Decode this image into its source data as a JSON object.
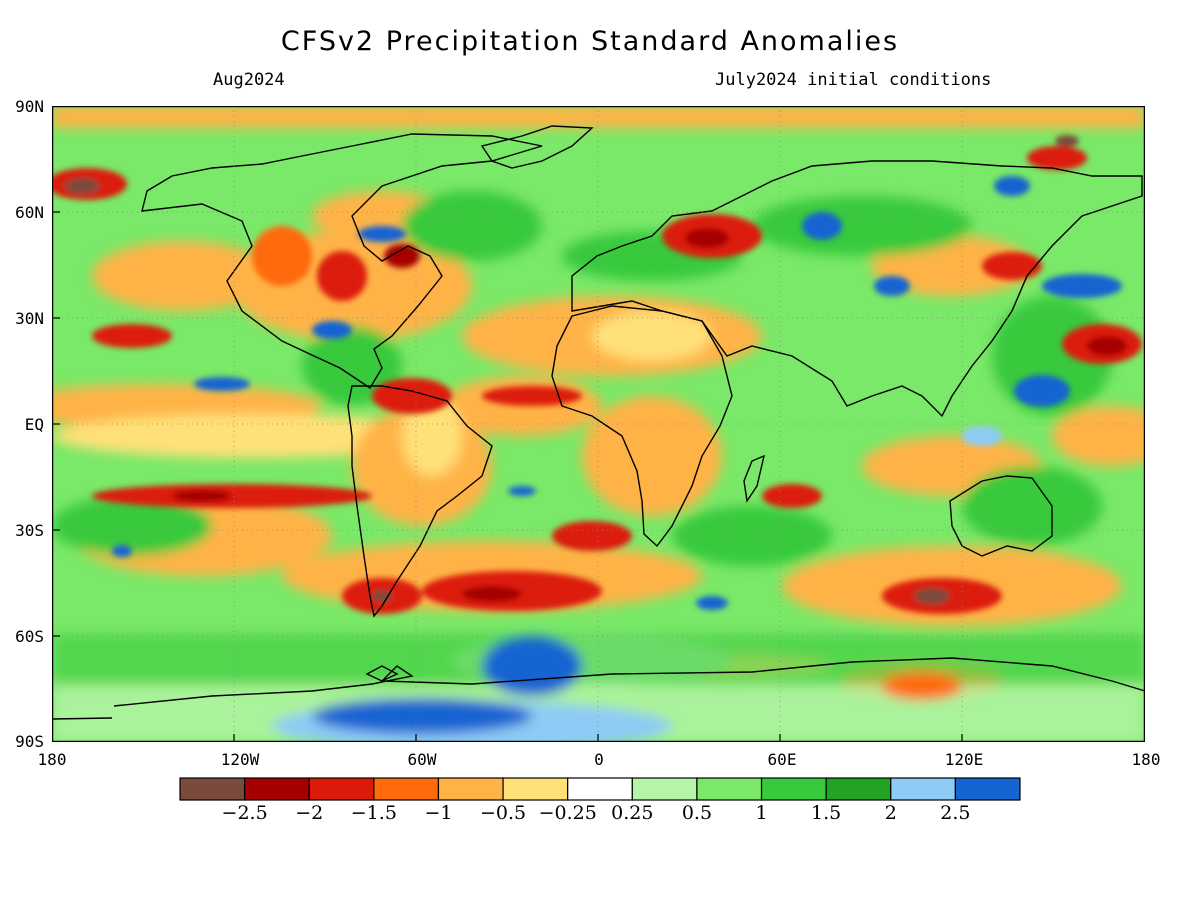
{
  "title": "CFSv2 Precipitation Standard Anomalies",
  "valid_month": "Aug2024",
  "initial_conditions": "July2024 initial conditions",
  "lat_labels": [
    "90N",
    "60N",
    "30N",
    "EQ",
    "30S",
    "60S",
    "90S"
  ],
  "lon_labels": [
    "180",
    "120W",
    "60W",
    "0",
    "60E",
    "120E",
    "180"
  ],
  "legend": {
    "colors": [
      "#7a4b3c",
      "#a50000",
      "#dc1a0a",
      "#ff6a0a",
      "#ffb347",
      "#ffe178",
      "#ffffff",
      "#b6f5a8",
      "#7ae868",
      "#39c93c",
      "#23a323",
      "#8ecbf5",
      "#1464d2"
    ],
    "labels": [
      "−2.5",
      "−2",
      "−1.5",
      "−1",
      "−0.5",
      "−0.25",
      "0.25",
      "0.5",
      "1",
      "1.5",
      "2",
      "2.5"
    ]
  }
}
